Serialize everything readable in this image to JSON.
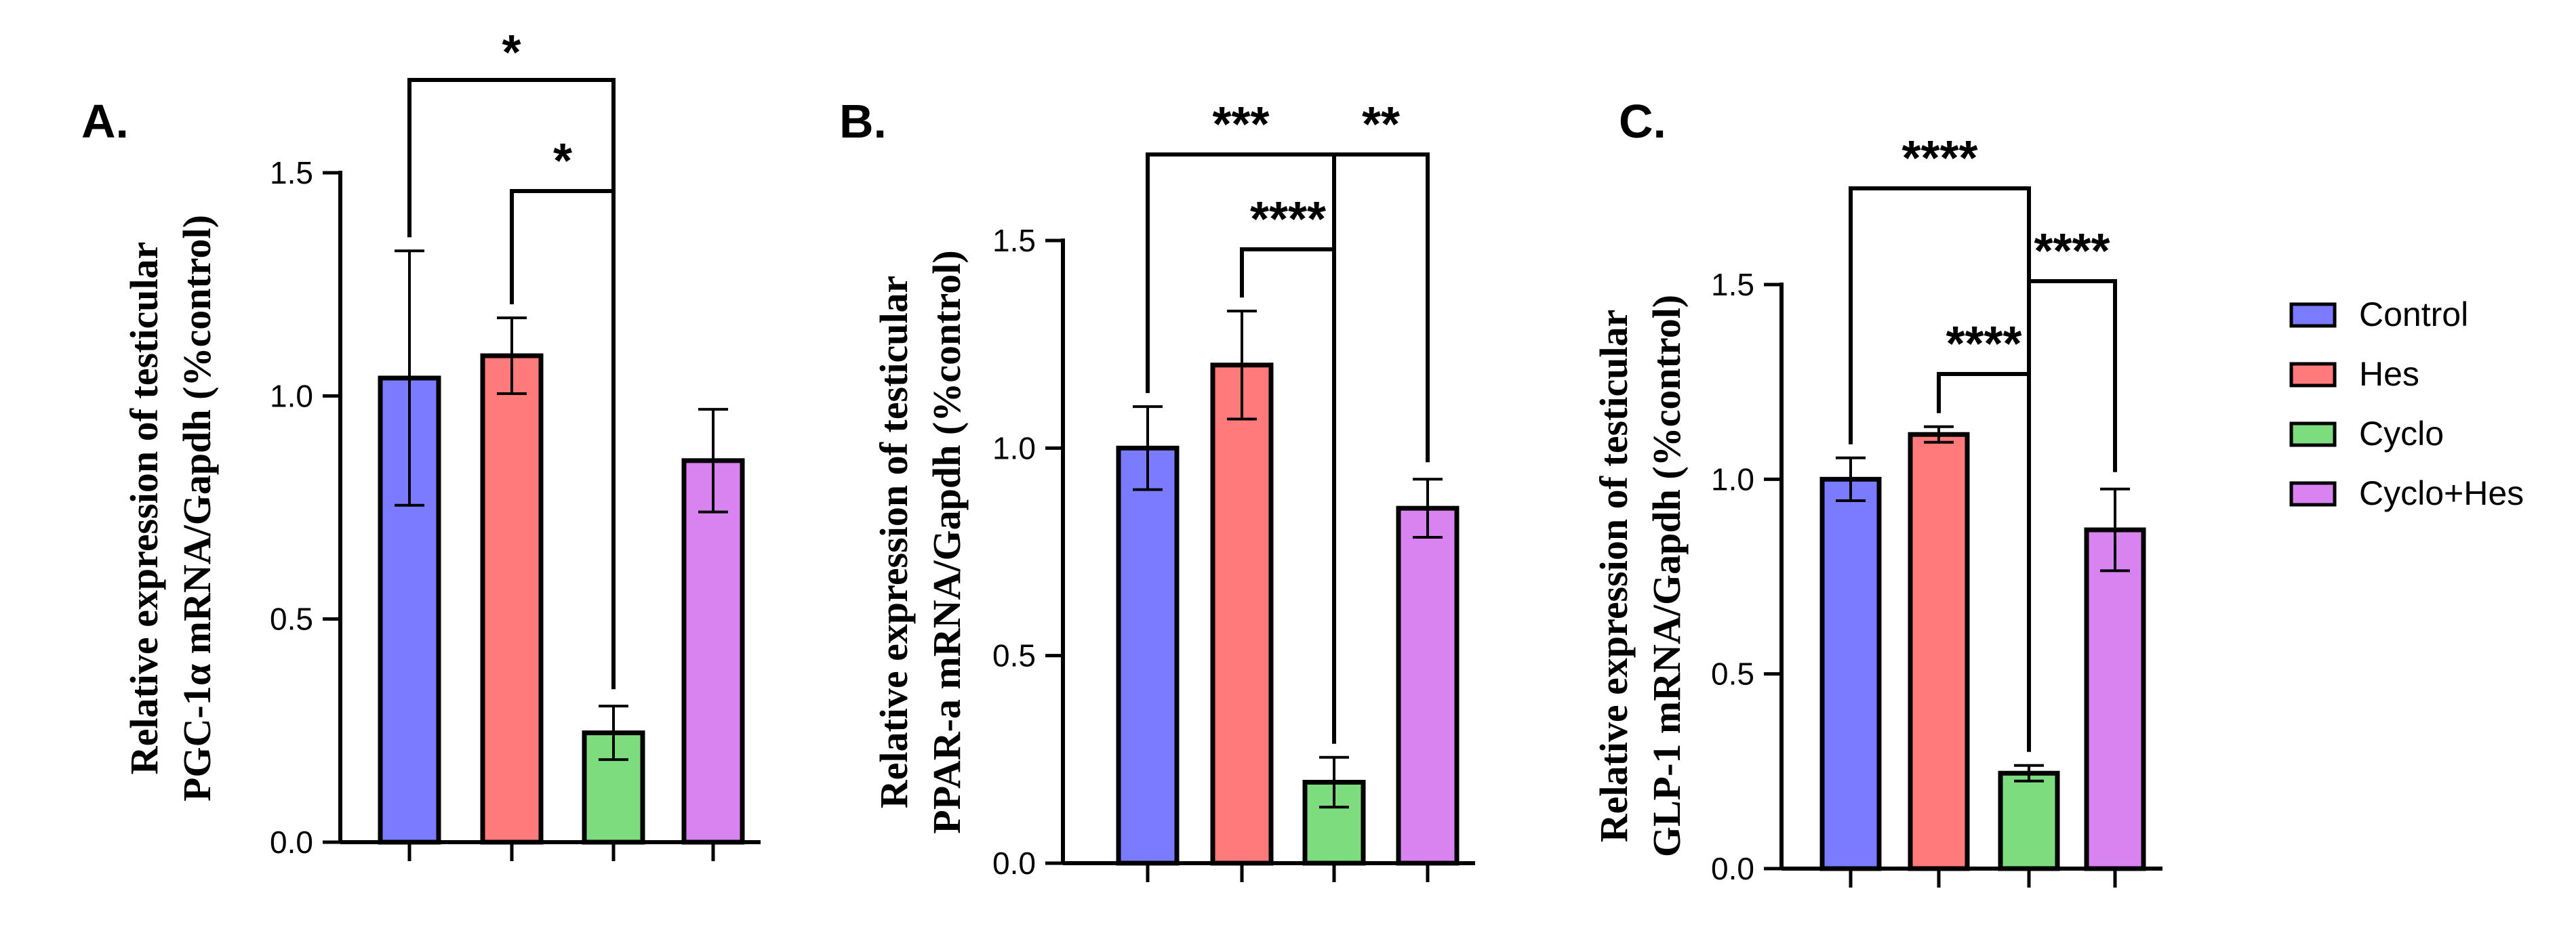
{
  "figure": {
    "legend": [
      {
        "label": "Control",
        "color": "#7b7bff"
      },
      {
        "label": "Hes",
        "color": "#ff7b7b"
      },
      {
        "label": "Cyclo",
        "color": "#7ddc7d"
      },
      {
        "label": "Cyclo+Hes",
        "color": "#d983f0"
      }
    ]
  },
  "chart_data": [
    {
      "type": "bar",
      "panel_label": "A.",
      "ylabel_line1": "Relative expression of testicular",
      "ylabel_line2": "PGC-1α mRNA/Gapdh (%control)",
      "categories": [
        "Control",
        "Hes",
        "Cyclo",
        "Cyclo+Hes"
      ],
      "values": [
        1.04,
        1.09,
        0.245,
        0.855
      ],
      "errors": [
        0.285,
        0.085,
        0.06,
        0.115
      ],
      "ylim": [
        0,
        1.5
      ],
      "yticks": [
        0.0,
        0.5,
        1.0,
        1.5
      ],
      "ytick_labels": [
        "0.0",
        "0.5",
        "1.0",
        "1.5"
      ],
      "significance": [
        {
          "from": 0,
          "to": 2,
          "label": "*"
        },
        {
          "from": 1,
          "to": 2,
          "label": "*"
        }
      ]
    },
    {
      "type": "bar",
      "panel_label": "B.",
      "ylabel_line1": "Relative expression of testicular",
      "ylabel_line2": "PPAR-a mRNA/Gapdh (%control)",
      "categories": [
        "Control",
        "Hes",
        "Cyclo",
        "Cyclo+Hes"
      ],
      "values": [
        1.0,
        1.2,
        0.195,
        0.855
      ],
      "errors": [
        0.1,
        0.13,
        0.06,
        0.07
      ],
      "ylim": [
        0,
        1.5
      ],
      "yticks": [
        0.0,
        0.5,
        1.0,
        1.5
      ],
      "ytick_labels": [
        "0.0",
        "0.5",
        "1.0",
        "1.5"
      ],
      "significance": [
        {
          "from": 0,
          "to": 2,
          "label": "***"
        },
        {
          "from": 1,
          "to": 2,
          "label": "****"
        },
        {
          "from": 2,
          "to": 3,
          "label": "**"
        }
      ]
    },
    {
      "type": "bar",
      "panel_label": "C.",
      "ylabel_line1": "Relative expression of testicular",
      "ylabel_line2": "GLP-1 mRNA/Gapdh (%control)",
      "categories": [
        "Control",
        "Hes",
        "Cyclo",
        "Cyclo+Hes"
      ],
      "values": [
        1.0,
        1.115,
        0.245,
        0.87
      ],
      "errors": [
        0.055,
        0.02,
        0.02,
        0.105
      ],
      "ylim": [
        0,
        1.5
      ],
      "yticks": [
        0.0,
        0.5,
        1.0,
        1.5
      ],
      "ytick_labels": [
        "0.0",
        "0.5",
        "1.0",
        "1.5"
      ],
      "significance": [
        {
          "from": 0,
          "to": 2,
          "label": "****"
        },
        {
          "from": 1,
          "to": 2,
          "label": "****"
        },
        {
          "from": 2,
          "to": 3,
          "label": "****"
        }
      ]
    }
  ]
}
